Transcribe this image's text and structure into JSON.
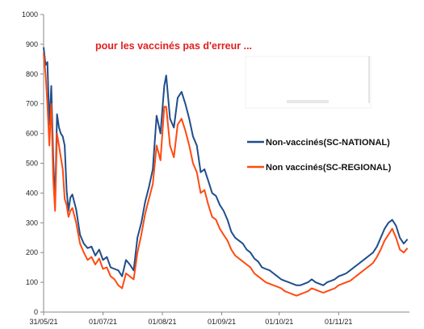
{
  "chart_data": {
    "type": "line",
    "title": "",
    "annotation": "pour les vaccinés pas d'erreur  ...",
    "xlabel": "",
    "ylabel": "",
    "ylim": [
      0,
      1000
    ],
    "yticks": [
      0,
      100,
      200,
      300,
      400,
      500,
      600,
      700,
      800,
      900,
      1000
    ],
    "xlim": [
      "2021-05-31",
      "2021-12-08"
    ],
    "xticks": [
      "31/05/21",
      "01/07/21",
      "01/08/21",
      "01/09/21",
      "01/10/21",
      "01/11/21"
    ],
    "grid": false,
    "legend_position": "right",
    "colors": {
      "national": "#1f4e8c",
      "regional": "#ff4a10",
      "annotation": "#e02020"
    },
    "series": [
      {
        "name": "Non-vaccinés(SC-NATIONAL)",
        "color": "#1f4e8c",
        "points": [
          [
            "2021-05-31",
            890
          ],
          [
            "2021-06-01",
            830
          ],
          [
            "2021-06-02",
            840
          ],
          [
            "2021-06-03",
            630
          ],
          [
            "2021-06-04",
            760
          ],
          [
            "2021-06-05",
            520
          ],
          [
            "2021-06-06",
            360
          ],
          [
            "2021-06-07",
            665
          ],
          [
            "2021-06-08",
            620
          ],
          [
            "2021-06-09",
            600
          ],
          [
            "2021-06-10",
            590
          ],
          [
            "2021-06-11",
            560
          ],
          [
            "2021-06-12",
            410
          ],
          [
            "2021-06-13",
            340
          ],
          [
            "2021-06-14",
            385
          ],
          [
            "2021-06-15",
            395
          ],
          [
            "2021-06-17",
            345
          ],
          [
            "2021-06-19",
            260
          ],
          [
            "2021-06-21",
            230
          ],
          [
            "2021-06-23",
            215
          ],
          [
            "2021-06-25",
            220
          ],
          [
            "2021-06-27",
            190
          ],
          [
            "2021-06-29",
            210
          ],
          [
            "2021-07-01",
            175
          ],
          [
            "2021-07-03",
            185
          ],
          [
            "2021-07-05",
            150
          ],
          [
            "2021-07-07",
            145
          ],
          [
            "2021-07-09",
            140
          ],
          [
            "2021-07-11",
            120
          ],
          [
            "2021-07-13",
            175
          ],
          [
            "2021-07-15",
            160
          ],
          [
            "2021-07-17",
            140
          ],
          [
            "2021-07-19",
            250
          ],
          [
            "2021-07-21",
            300
          ],
          [
            "2021-07-23",
            370
          ],
          [
            "2021-07-25",
            420
          ],
          [
            "2021-07-27",
            480
          ],
          [
            "2021-07-29",
            660
          ],
          [
            "2021-07-31",
            600
          ],
          [
            "2021-08-02",
            760
          ],
          [
            "2021-08-03",
            795
          ],
          [
            "2021-08-05",
            650
          ],
          [
            "2021-08-07",
            620
          ],
          [
            "2021-08-09",
            720
          ],
          [
            "2021-08-11",
            740
          ],
          [
            "2021-08-13",
            700
          ],
          [
            "2021-08-15",
            650
          ],
          [
            "2021-08-17",
            590
          ],
          [
            "2021-08-19",
            560
          ],
          [
            "2021-08-21",
            470
          ],
          [
            "2021-08-23",
            480
          ],
          [
            "2021-08-25",
            440
          ],
          [
            "2021-08-27",
            400
          ],
          [
            "2021-08-29",
            390
          ],
          [
            "2021-08-31",
            360
          ],
          [
            "2021-09-02",
            340
          ],
          [
            "2021-09-04",
            310
          ],
          [
            "2021-09-06",
            270
          ],
          [
            "2021-09-08",
            250
          ],
          [
            "2021-09-10",
            240
          ],
          [
            "2021-09-12",
            230
          ],
          [
            "2021-09-14",
            210
          ],
          [
            "2021-09-16",
            200
          ],
          [
            "2021-09-18",
            180
          ],
          [
            "2021-09-20",
            170
          ],
          [
            "2021-09-22",
            150
          ],
          [
            "2021-09-24",
            145
          ],
          [
            "2021-09-26",
            140
          ],
          [
            "2021-09-28",
            130
          ],
          [
            "2021-09-30",
            120
          ],
          [
            "2021-10-02",
            110
          ],
          [
            "2021-10-04",
            105
          ],
          [
            "2021-10-06",
            100
          ],
          [
            "2021-10-08",
            95
          ],
          [
            "2021-10-10",
            90
          ],
          [
            "2021-10-12",
            90
          ],
          [
            "2021-10-14",
            95
          ],
          [
            "2021-10-16",
            100
          ],
          [
            "2021-10-18",
            110
          ],
          [
            "2021-10-20",
            100
          ],
          [
            "2021-10-22",
            95
          ],
          [
            "2021-10-24",
            90
          ],
          [
            "2021-10-26",
            100
          ],
          [
            "2021-10-28",
            105
          ],
          [
            "2021-10-30",
            110
          ],
          [
            "2021-11-01",
            120
          ],
          [
            "2021-11-03",
            125
          ],
          [
            "2021-11-05",
            130
          ],
          [
            "2021-11-07",
            140
          ],
          [
            "2021-11-09",
            150
          ],
          [
            "2021-11-11",
            160
          ],
          [
            "2021-11-13",
            170
          ],
          [
            "2021-11-15",
            180
          ],
          [
            "2021-11-17",
            190
          ],
          [
            "2021-11-19",
            200
          ],
          [
            "2021-11-21",
            220
          ],
          [
            "2021-11-23",
            250
          ],
          [
            "2021-11-25",
            280
          ],
          [
            "2021-11-27",
            300
          ],
          [
            "2021-11-29",
            310
          ],
          [
            "2021-12-01",
            290
          ],
          [
            "2021-12-03",
            250
          ],
          [
            "2021-12-05",
            230
          ],
          [
            "2021-12-07",
            245
          ]
        ]
      },
      {
        "name": "Non vaccinés(SC-REGIONAL)",
        "color": "#ff4a10",
        "points": [
          [
            "2021-05-31",
            870
          ],
          [
            "2021-06-01",
            800
          ],
          [
            "2021-06-02",
            700
          ],
          [
            "2021-06-03",
            560
          ],
          [
            "2021-06-04",
            700
          ],
          [
            "2021-06-05",
            450
          ],
          [
            "2021-06-06",
            340
          ],
          [
            "2021-06-07",
            600
          ],
          [
            "2021-06-08",
            560
          ],
          [
            "2021-06-09",
            520
          ],
          [
            "2021-06-10",
            480
          ],
          [
            "2021-06-11",
            380
          ],
          [
            "2021-06-12",
            360
          ],
          [
            "2021-06-13",
            320
          ],
          [
            "2021-06-14",
            340
          ],
          [
            "2021-06-15",
            350
          ],
          [
            "2021-06-17",
            300
          ],
          [
            "2021-06-19",
            230
          ],
          [
            "2021-06-21",
            200
          ],
          [
            "2021-06-23",
            175
          ],
          [
            "2021-06-25",
            185
          ],
          [
            "2021-06-27",
            160
          ],
          [
            "2021-06-29",
            180
          ],
          [
            "2021-07-01",
            145
          ],
          [
            "2021-07-03",
            150
          ],
          [
            "2021-07-05",
            120
          ],
          [
            "2021-07-07",
            110
          ],
          [
            "2021-07-09",
            90
          ],
          [
            "2021-07-11",
            80
          ],
          [
            "2021-07-13",
            130
          ],
          [
            "2021-07-15",
            120
          ],
          [
            "2021-07-17",
            110
          ],
          [
            "2021-07-19",
            200
          ],
          [
            "2021-07-21",
            260
          ],
          [
            "2021-07-23",
            330
          ],
          [
            "2021-07-25",
            380
          ],
          [
            "2021-07-27",
            430
          ],
          [
            "2021-07-29",
            560
          ],
          [
            "2021-07-31",
            510
          ],
          [
            "2021-08-02",
            690
          ],
          [
            "2021-08-03",
            690
          ],
          [
            "2021-08-05",
            560
          ],
          [
            "2021-08-07",
            520
          ],
          [
            "2021-08-09",
            630
          ],
          [
            "2021-08-11",
            650
          ],
          [
            "2021-08-13",
            610
          ],
          [
            "2021-08-15",
            560
          ],
          [
            "2021-08-17",
            500
          ],
          [
            "2021-08-19",
            470
          ],
          [
            "2021-08-21",
            400
          ],
          [
            "2021-08-23",
            410
          ],
          [
            "2021-08-25",
            360
          ],
          [
            "2021-08-27",
            320
          ],
          [
            "2021-08-29",
            310
          ],
          [
            "2021-08-31",
            280
          ],
          [
            "2021-09-02",
            260
          ],
          [
            "2021-09-04",
            240
          ],
          [
            "2021-09-06",
            210
          ],
          [
            "2021-09-08",
            190
          ],
          [
            "2021-09-10",
            180
          ],
          [
            "2021-09-12",
            170
          ],
          [
            "2021-09-14",
            160
          ],
          [
            "2021-09-16",
            150
          ],
          [
            "2021-09-18",
            130
          ],
          [
            "2021-09-20",
            120
          ],
          [
            "2021-09-22",
            110
          ],
          [
            "2021-09-24",
            100
          ],
          [
            "2021-09-26",
            95
          ],
          [
            "2021-09-28",
            90
          ],
          [
            "2021-09-30",
            85
          ],
          [
            "2021-10-02",
            80
          ],
          [
            "2021-10-04",
            70
          ],
          [
            "2021-10-06",
            65
          ],
          [
            "2021-10-08",
            60
          ],
          [
            "2021-10-10",
            55
          ],
          [
            "2021-10-12",
            60
          ],
          [
            "2021-10-14",
            65
          ],
          [
            "2021-10-16",
            70
          ],
          [
            "2021-10-18",
            80
          ],
          [
            "2021-10-20",
            75
          ],
          [
            "2021-10-22",
            70
          ],
          [
            "2021-10-24",
            65
          ],
          [
            "2021-10-26",
            70
          ],
          [
            "2021-10-28",
            75
          ],
          [
            "2021-10-30",
            80
          ],
          [
            "2021-11-01",
            90
          ],
          [
            "2021-11-03",
            95
          ],
          [
            "2021-11-05",
            100
          ],
          [
            "2021-11-07",
            105
          ],
          [
            "2021-11-09",
            115
          ],
          [
            "2021-11-11",
            125
          ],
          [
            "2021-11-13",
            135
          ],
          [
            "2021-11-15",
            145
          ],
          [
            "2021-11-17",
            155
          ],
          [
            "2021-11-19",
            165
          ],
          [
            "2021-11-21",
            185
          ],
          [
            "2021-11-23",
            210
          ],
          [
            "2021-11-25",
            240
          ],
          [
            "2021-11-27",
            260
          ],
          [
            "2021-11-29",
            280
          ],
          [
            "2021-12-01",
            250
          ],
          [
            "2021-12-03",
            210
          ],
          [
            "2021-12-05",
            200
          ],
          [
            "2021-12-07",
            215
          ]
        ]
      }
    ]
  }
}
